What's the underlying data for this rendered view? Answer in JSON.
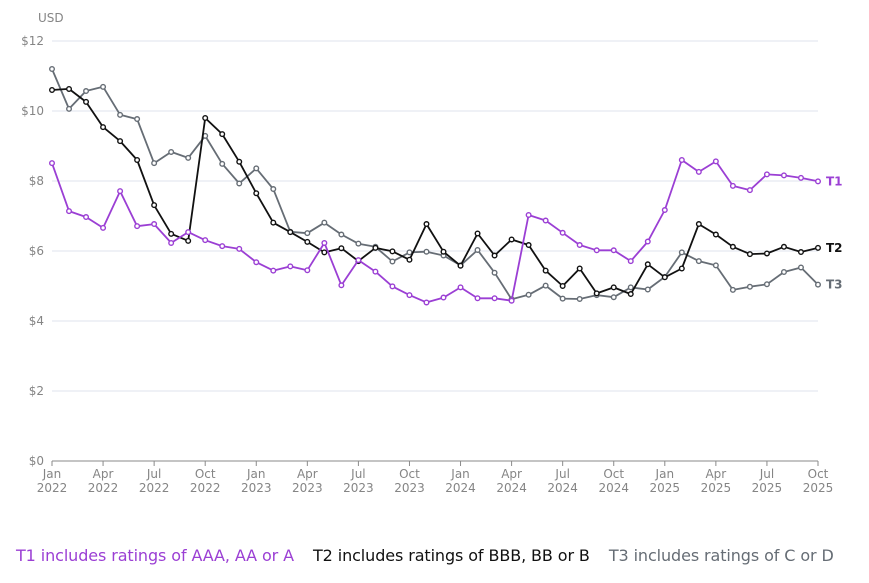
{
  "chart_data": {
    "type": "line",
    "title": "",
    "ylabel": "USD",
    "xlabel": "",
    "ylim": [
      0,
      12
    ],
    "yticks": [
      0,
      2,
      4,
      6,
      8,
      10,
      12
    ],
    "ytick_labels": [
      "$0",
      "$2",
      "$4",
      "$6",
      "$8",
      "$10",
      "$12"
    ],
    "grid": true,
    "x_start": "Jan 2022",
    "x_end": "Oct 2025",
    "x_frequency": "monthly",
    "xtick_labels": [
      [
        "Jan",
        "2022"
      ],
      [
        "Apr",
        "2022"
      ],
      [
        "Jul",
        "2022"
      ],
      [
        "Oct",
        "2022"
      ],
      [
        "Jan",
        "2023"
      ],
      [
        "Apr",
        "2023"
      ],
      [
        "Jul",
        "2023"
      ],
      [
        "Oct",
        "2023"
      ],
      [
        "Jan",
        "2024"
      ],
      [
        "Apr",
        "2024"
      ],
      [
        "Jul",
        "2024"
      ],
      [
        "Oct",
        "2024"
      ],
      [
        "Jan",
        "2025"
      ],
      [
        "Apr",
        "2025"
      ],
      [
        "Jul",
        "2025"
      ],
      [
        "Oct",
        "2025"
      ]
    ],
    "xtick_every_n_points": 3,
    "series": [
      {
        "name": "T1",
        "color": "#9b3fd4",
        "values": [
          8.51,
          7.14,
          6.97,
          6.66,
          7.71,
          6.71,
          6.77,
          6.23,
          6.54,
          6.31,
          6.14,
          6.06,
          5.68,
          5.44,
          5.56,
          5.45,
          6.23,
          5.02,
          5.74,
          5.41,
          4.99,
          4.74,
          4.53,
          4.67,
          4.96,
          4.65,
          4.65,
          4.58,
          7.03,
          6.87,
          6.52,
          6.17,
          6.02,
          6.02,
          5.71,
          6.27,
          7.17,
          8.6,
          8.26,
          8.56,
          7.86,
          7.74,
          8.19,
          8.16,
          8.09,
          7.99
        ]
      },
      {
        "name": "T2",
        "color": "#111111",
        "values": [
          10.6,
          10.63,
          10.26,
          9.54,
          9.14,
          8.6,
          7.31,
          6.49,
          6.29,
          9.8,
          9.34,
          8.55,
          7.65,
          6.81,
          6.54,
          6.26,
          5.96,
          6.08,
          5.71,
          6.09,
          5.99,
          5.75,
          6.77,
          5.98,
          5.58,
          6.5,
          5.87,
          6.33,
          6.17,
          5.44,
          5.0,
          5.5,
          4.79,
          4.96,
          4.77,
          5.62,
          5.25,
          5.5,
          6.77,
          6.47,
          6.12,
          5.91,
          5.93,
          6.12,
          5.97,
          6.09
        ]
      },
      {
        "name": "T3",
        "color": "#666d75",
        "values": [
          11.2,
          10.06,
          10.57,
          10.69,
          9.89,
          9.77,
          8.51,
          8.83,
          8.66,
          9.29,
          8.49,
          7.93,
          8.36,
          7.77,
          6.55,
          6.51,
          6.81,
          6.47,
          6.21,
          6.12,
          5.7,
          5.96,
          5.98,
          5.87,
          5.59,
          6.03,
          5.38,
          4.62,
          4.75,
          5.01,
          4.64,
          4.63,
          4.74,
          4.68,
          4.96,
          4.9,
          5.26,
          5.96,
          5.71,
          5.59,
          4.89,
          4.98,
          5.05,
          5.4,
          5.53,
          5.04
        ]
      }
    ],
    "legend_placement": "bottom",
    "legend": [
      {
        "text": "T1 includes ratings of AAA, AA or A",
        "color": "#9b3fd4"
      },
      {
        "text": "T2 includes ratings of BBB, BB or B",
        "color": "#111111"
      },
      {
        "text": "T3 includes ratings of C or D",
        "color": "#666d75"
      }
    ]
  }
}
